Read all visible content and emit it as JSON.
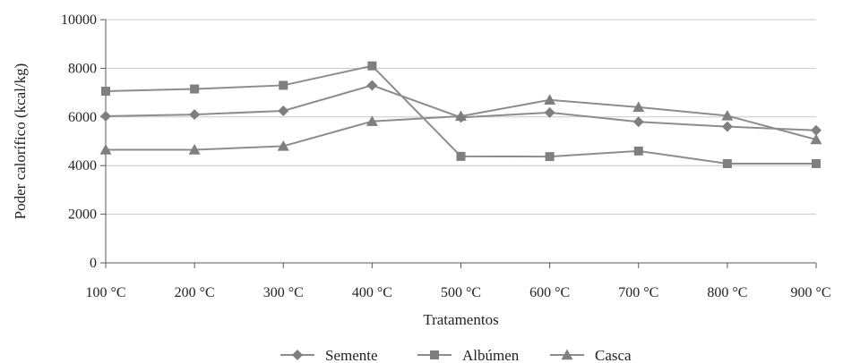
{
  "chart_data": {
    "type": "line",
    "title": "",
    "xlabel": "Tratamentos",
    "ylabel": "Poder calorífico (kcal/kg)",
    "categories": [
      "100 °C",
      "200 °C",
      "300 °C",
      "400 °C",
      "500 °C",
      "600 °C",
      "700 °C",
      "800 °C",
      "900 °C"
    ],
    "ylim": [
      0,
      10000
    ],
    "yticks": [
      "0",
      "2000",
      "4000",
      "6000",
      "8000",
      "10000"
    ],
    "grid": true,
    "legend_position": "bottom",
    "series": [
      {
        "name": "Semente",
        "marker": "diamond",
        "values": [
          6030,
          6100,
          6250,
          7300,
          5980,
          6180,
          5800,
          5600,
          5450
        ]
      },
      {
        "name": "Albúmen",
        "marker": "square",
        "values": [
          7060,
          7150,
          7300,
          8100,
          4380,
          4370,
          4600,
          4080,
          4080
        ]
      },
      {
        "name": "Casca",
        "marker": "triangle",
        "values": [
          4650,
          4650,
          4800,
          5820,
          6030,
          6700,
          6400,
          6050,
          5070
        ]
      }
    ],
    "colors": {
      "line": "#8c8c8c",
      "marker": "#7f7f7f",
      "grid": "#c8c8c8",
      "axis": "#595959"
    }
  }
}
